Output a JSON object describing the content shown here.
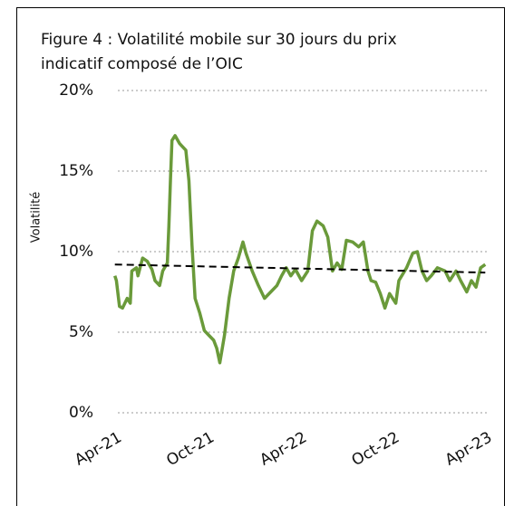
{
  "chart_data": {
    "type": "line",
    "title": "Figure 4 : Volatilité mobile sur 30 jours du prix indicatif composé de l’OIC",
    "y_label": "Volatilité",
    "series": [
      {
        "color": "#6a9a3a",
        "style": "solid",
        "x": [
          0,
          0.1,
          0.3,
          0.5,
          0.8,
          1.0,
          1.1,
          1.4,
          1.5,
          1.8,
          2.1,
          2.4,
          2.6,
          2.9,
          3.1,
          3.4,
          3.5,
          3.6,
          3.7,
          3.9,
          4.2,
          4.6,
          4.8,
          5.0,
          5.2,
          5.5,
          5.8,
          6.1,
          6.4,
          6.6,
          6.8,
          7.1,
          7.4,
          7.7,
          8.0,
          8.3,
          8.5,
          8.9,
          9.3,
          9.7,
          10.1,
          10.5,
          10.8,
          11.1,
          11.4,
          11.7,
          12.1,
          12.5,
          12.8,
          13.1,
          13.5,
          13.8,
          14.1,
          14.4,
          14.7,
          15.0,
          15.4,
          15.8,
          16.1,
          16.4,
          16.6,
          16.9,
          17.2,
          17.5,
          17.8,
          18.2,
          18.4,
          18.9,
          19.3,
          19.6,
          19.9,
          20.2,
          20.5,
          20.9,
          21.4,
          21.7,
          22.1,
          22.4,
          22.8,
          23.1,
          23.4,
          23.7,
          24.0
        ],
        "values": [
          8.5,
          8.2,
          6.6,
          6.5,
          7.1,
          6.8,
          8.8,
          9.0,
          8.5,
          9.6,
          9.4,
          8.9,
          8.2,
          7.9,
          8.8,
          9.3,
          11.6,
          14.4,
          16.9,
          17.2,
          16.7,
          16.3,
          14.4,
          10.4,
          7.1,
          6.2,
          5.1,
          4.8,
          4.5,
          4.0,
          3.1,
          4.8,
          7.1,
          8.8,
          9.6,
          10.6,
          9.9,
          8.8,
          7.9,
          7.1,
          7.5,
          7.9,
          8.5,
          9.0,
          8.5,
          8.9,
          8.2,
          8.8,
          11.3,
          11.9,
          11.6,
          10.9,
          8.8,
          9.3,
          8.9,
          10.7,
          10.6,
          10.3,
          10.6,
          8.8,
          8.2,
          8.1,
          7.4,
          6.5,
          7.4,
          6.8,
          8.2,
          9.0,
          9.9,
          10.0,
          8.8,
          8.2,
          8.5,
          9.0,
          8.8,
          8.2,
          8.8,
          8.2,
          7.5,
          8.2,
          7.8,
          9.0,
          9.2
        ]
      },
      {
        "color": "#000000",
        "style": "dashed",
        "x": [
          0,
          24
        ],
        "values": [
          9.2,
          8.7
        ]
      }
    ],
    "xlim": [
      -0.1,
      24.1
    ],
    "xticks": [
      {
        "value": 0,
        "label": "Apr-21"
      },
      {
        "value": 6,
        "label": "Oct-21"
      },
      {
        "value": 12,
        "label": "Apr-22"
      },
      {
        "value": 18,
        "label": "Oct-22"
      },
      {
        "value": 24,
        "label": "Apr-23"
      }
    ],
    "ylim": [
      0,
      20
    ],
    "yticks": [
      {
        "value": 0,
        "label": "0%"
      },
      {
        "value": 5,
        "label": "5%"
      },
      {
        "value": 10,
        "label": "10%"
      },
      {
        "value": 15,
        "label": "15%"
      },
      {
        "value": 20,
        "label": "20%"
      }
    ],
    "grid": true
  }
}
